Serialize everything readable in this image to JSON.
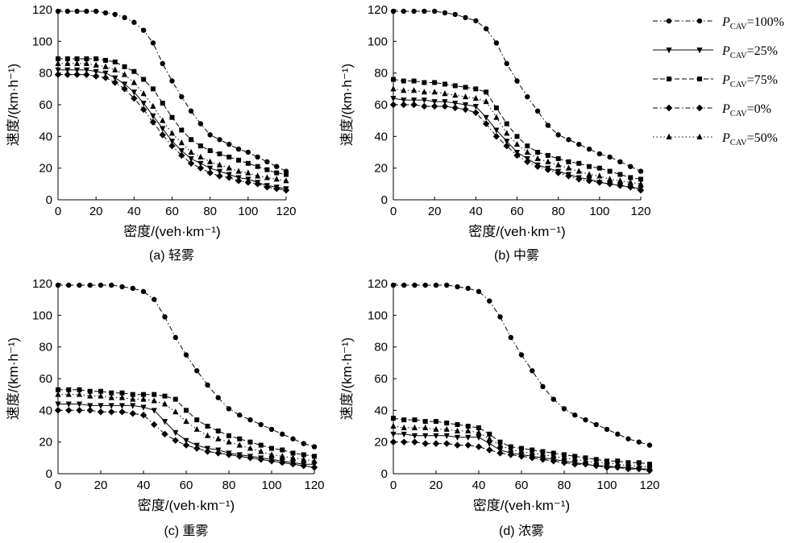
{
  "legend": [
    {
      "series": "p100",
      "prefix": "P",
      "sub": "CAV",
      "suffix": "=100%"
    },
    {
      "series": "p25",
      "prefix": "P",
      "sub": "CAV",
      "suffix": "=25%"
    },
    {
      "series": "p75",
      "prefix": "P",
      "sub": "CAV",
      "suffix": "=75%"
    },
    {
      "series": "p0",
      "prefix": "P",
      "sub": "CAV",
      "suffix": "=0%"
    },
    {
      "series": "p50",
      "prefix": "P",
      "sub": "CAV",
      "suffix": "=50%"
    }
  ],
  "styles": {
    "p100": {
      "marker": "circle",
      "dash": "6 3 1.5 3"
    },
    "p25": {
      "marker": "tri-down",
      "dash": ""
    },
    "p75": {
      "marker": "square",
      "dash": "6 3"
    },
    "p0": {
      "marker": "diamond",
      "dash": "6 3 1.5 3"
    },
    "p50": {
      "marker": "triangle",
      "dash": "1.5 3"
    }
  },
  "chart_data": [
    {
      "type": "line",
      "caption": "(a) 轻雾",
      "xlabel": "密度/(veh·km⁻¹)",
      "ylabel": "速度/(km·h⁻¹)",
      "xlim": [
        0,
        120
      ],
      "ylim": [
        0,
        120
      ],
      "xticks": [
        0,
        20,
        40,
        60,
        80,
        100,
        120
      ],
      "yticks": [
        0,
        20,
        40,
        60,
        80,
        100,
        120
      ],
      "x": [
        0,
        5,
        10,
        15,
        20,
        25,
        30,
        35,
        40,
        45,
        50,
        55,
        60,
        65,
        70,
        75,
        80,
        85,
        90,
        95,
        100,
        105,
        110,
        115,
        120
      ],
      "series": [
        {
          "key": "p100",
          "values": [
            119,
            119,
            119,
            119,
            119,
            118,
            117,
            115,
            112,
            107,
            99,
            86,
            75,
            65,
            56,
            48,
            41,
            38,
            35,
            32,
            30,
            27,
            24,
            21,
            18
          ]
        },
        {
          "key": "p75",
          "values": [
            89,
            89,
            89,
            89,
            89,
            88,
            87,
            84,
            81,
            76,
            70,
            61,
            52,
            44,
            38,
            34,
            31,
            29,
            27,
            25,
            23,
            21,
            19,
            17,
            16
          ]
        },
        {
          "key": "p50",
          "values": [
            86,
            86,
            86,
            86,
            85,
            84,
            82,
            79,
            74,
            67,
            59,
            50,
            42,
            36,
            30,
            27,
            24,
            22,
            20,
            18,
            17,
            15,
            14,
            13,
            12
          ]
        },
        {
          "key": "p25",
          "values": [
            82,
            82,
            82,
            82,
            81,
            80,
            77,
            73,
            68,
            61,
            53,
            45,
            37,
            31,
            26,
            23,
            20,
            18,
            16,
            14,
            13,
            11,
            9,
            8,
            7
          ]
        },
        {
          "key": "p0",
          "values": [
            79,
            79,
            79,
            79,
            78,
            77,
            74,
            70,
            64,
            57,
            49,
            41,
            34,
            28,
            23,
            20,
            17,
            15,
            14,
            12,
            11,
            10,
            8,
            7,
            6
          ]
        }
      ]
    },
    {
      "type": "line",
      "caption": "(b) 中雾",
      "xlabel": "密度/(veh·km⁻¹)",
      "ylabel": "速度/(km·h⁻¹)",
      "xlim": [
        0,
        120
      ],
      "ylim": [
        0,
        120
      ],
      "xticks": [
        0,
        20,
        40,
        60,
        80,
        100,
        120
      ],
      "yticks": [
        0,
        20,
        40,
        60,
        80,
        100,
        120
      ],
      "x": [
        0,
        5,
        10,
        15,
        20,
        25,
        30,
        35,
        40,
        45,
        50,
        55,
        60,
        65,
        70,
        75,
        80,
        85,
        90,
        95,
        100,
        105,
        110,
        115,
        120
      ],
      "series": [
        {
          "key": "p100",
          "values": [
            119,
            119,
            119,
            119,
            119,
            118,
            117,
            115,
            113,
            108,
            99,
            86,
            75,
            65,
            56,
            47,
            41,
            38,
            35,
            32,
            29,
            27,
            24,
            21,
            18
          ]
        },
        {
          "key": "p75",
          "values": [
            76,
            75,
            75,
            74,
            74,
            73,
            72,
            71,
            70,
            68,
            58,
            48,
            40,
            34,
            30,
            28,
            26,
            24,
            23,
            21,
            20,
            18,
            16,
            14,
            13
          ]
        },
        {
          "key": "p50",
          "values": [
            70,
            69,
            69,
            68,
            68,
            67,
            66,
            65,
            64,
            62,
            52,
            42,
            35,
            30,
            26,
            24,
            22,
            20,
            18,
            16,
            15,
            13,
            12,
            11,
            10
          ]
        },
        {
          "key": "p25",
          "values": [
            64,
            63,
            63,
            63,
            62,
            62,
            61,
            60,
            59,
            52,
            44,
            37,
            30,
            26,
            22,
            20,
            18,
            16,
            14,
            13,
            11,
            10,
            9,
            8,
            7
          ]
        },
        {
          "key": "p0",
          "values": [
            60,
            60,
            60,
            59,
            59,
            59,
            58,
            57,
            55,
            48,
            40,
            34,
            28,
            24,
            21,
            19,
            17,
            15,
            13,
            12,
            11,
            10,
            9,
            8,
            6
          ]
        }
      ]
    },
    {
      "type": "line",
      "caption": "(c) 重雾",
      "xlabel": "密度/(veh·km⁻¹)",
      "ylabel": "速度/(km·h⁻¹)",
      "xlim": [
        0,
        120
      ],
      "ylim": [
        0,
        120
      ],
      "xticks": [
        0,
        20,
        40,
        60,
        80,
        100,
        120
      ],
      "yticks": [
        0,
        20,
        40,
        60,
        80,
        100,
        120
      ],
      "x": [
        0,
        5,
        10,
        15,
        20,
        25,
        30,
        35,
        40,
        45,
        50,
        55,
        60,
        65,
        70,
        75,
        80,
        85,
        90,
        95,
        100,
        105,
        110,
        115,
        120
      ],
      "series": [
        {
          "key": "p100",
          "values": [
            119,
            119,
            119,
            119,
            119,
            119,
            118,
            117,
            115,
            110,
            99,
            86,
            75,
            65,
            56,
            48,
            41,
            37,
            34,
            31,
            28,
            25,
            22,
            19,
            17
          ]
        },
        {
          "key": "p75",
          "values": [
            53,
            53,
            53,
            52,
            52,
            51,
            51,
            50,
            50,
            50,
            49,
            47,
            40,
            34,
            30,
            27,
            24,
            22,
            20,
            18,
            16,
            15,
            13,
            12,
            11
          ]
        },
        {
          "key": "p50",
          "values": [
            50,
            50,
            50,
            49,
            49,
            48,
            48,
            47,
            47,
            46,
            44,
            39,
            33,
            28,
            24,
            22,
            20,
            18,
            16,
            14,
            12,
            11,
            10,
            9,
            8
          ]
        },
        {
          "key": "p25",
          "values": [
            44,
            44,
            44,
            43,
            43,
            43,
            43,
            43,
            42,
            40,
            33,
            26,
            21,
            18,
            16,
            15,
            13,
            12,
            11,
            10,
            9,
            8,
            7,
            6,
            6
          ]
        },
        {
          "key": "p0",
          "values": [
            40,
            40,
            40,
            40,
            39,
            39,
            39,
            38,
            37,
            31,
            25,
            21,
            18,
            16,
            14,
            13,
            12,
            11,
            10,
            9,
            8,
            7,
            6,
            5,
            4
          ]
        }
      ]
    },
    {
      "type": "line",
      "caption": "(d) 浓雾",
      "xlabel": "密度/(veh·km⁻¹)",
      "ylabel": "速度/(km·h⁻¹)",
      "xlim": [
        0,
        120
      ],
      "ylim": [
        0,
        120
      ],
      "xticks": [
        0,
        20,
        40,
        60,
        80,
        100,
        120
      ],
      "yticks": [
        0,
        20,
        40,
        60,
        80,
        100,
        120
      ],
      "x": [
        0,
        5,
        10,
        15,
        20,
        25,
        30,
        35,
        40,
        45,
        50,
        55,
        60,
        65,
        70,
        75,
        80,
        85,
        90,
        95,
        100,
        105,
        110,
        115,
        120
      ],
      "series": [
        {
          "key": "p100",
          "values": [
            119,
            119,
            119,
            119,
            119,
            119,
            118,
            117,
            115,
            109,
            99,
            86,
            75,
            65,
            55,
            47,
            41,
            37,
            34,
            31,
            28,
            25,
            22,
            20,
            18
          ]
        },
        {
          "key": "p75",
          "values": [
            35,
            34,
            34,
            33,
            33,
            32,
            31,
            30,
            29,
            25,
            20,
            17,
            16,
            15,
            14,
            13,
            12,
            11,
            10,
            9,
            8,
            8,
            7,
            7,
            6
          ]
        },
        {
          "key": "p50",
          "values": [
            30,
            29,
            29,
            29,
            28,
            28,
            27,
            27,
            26,
            22,
            18,
            15,
            14,
            13,
            12,
            11,
            10,
            9,
            8,
            7,
            7,
            6,
            5,
            5,
            4
          ]
        },
        {
          "key": "p25",
          "values": [
            25,
            25,
            24,
            24,
            24,
            24,
            23,
            23,
            23,
            19,
            15,
            13,
            12,
            11,
            10,
            9,
            8,
            7,
            6,
            5,
            5,
            4,
            4,
            3,
            3
          ]
        },
        {
          "key": "p0",
          "values": [
            20,
            20,
            20,
            19,
            19,
            19,
            18,
            18,
            17,
            15,
            13,
            12,
            11,
            10,
            9,
            8,
            7,
            6,
            6,
            5,
            4,
            4,
            3,
            3,
            2
          ]
        }
      ]
    }
  ]
}
